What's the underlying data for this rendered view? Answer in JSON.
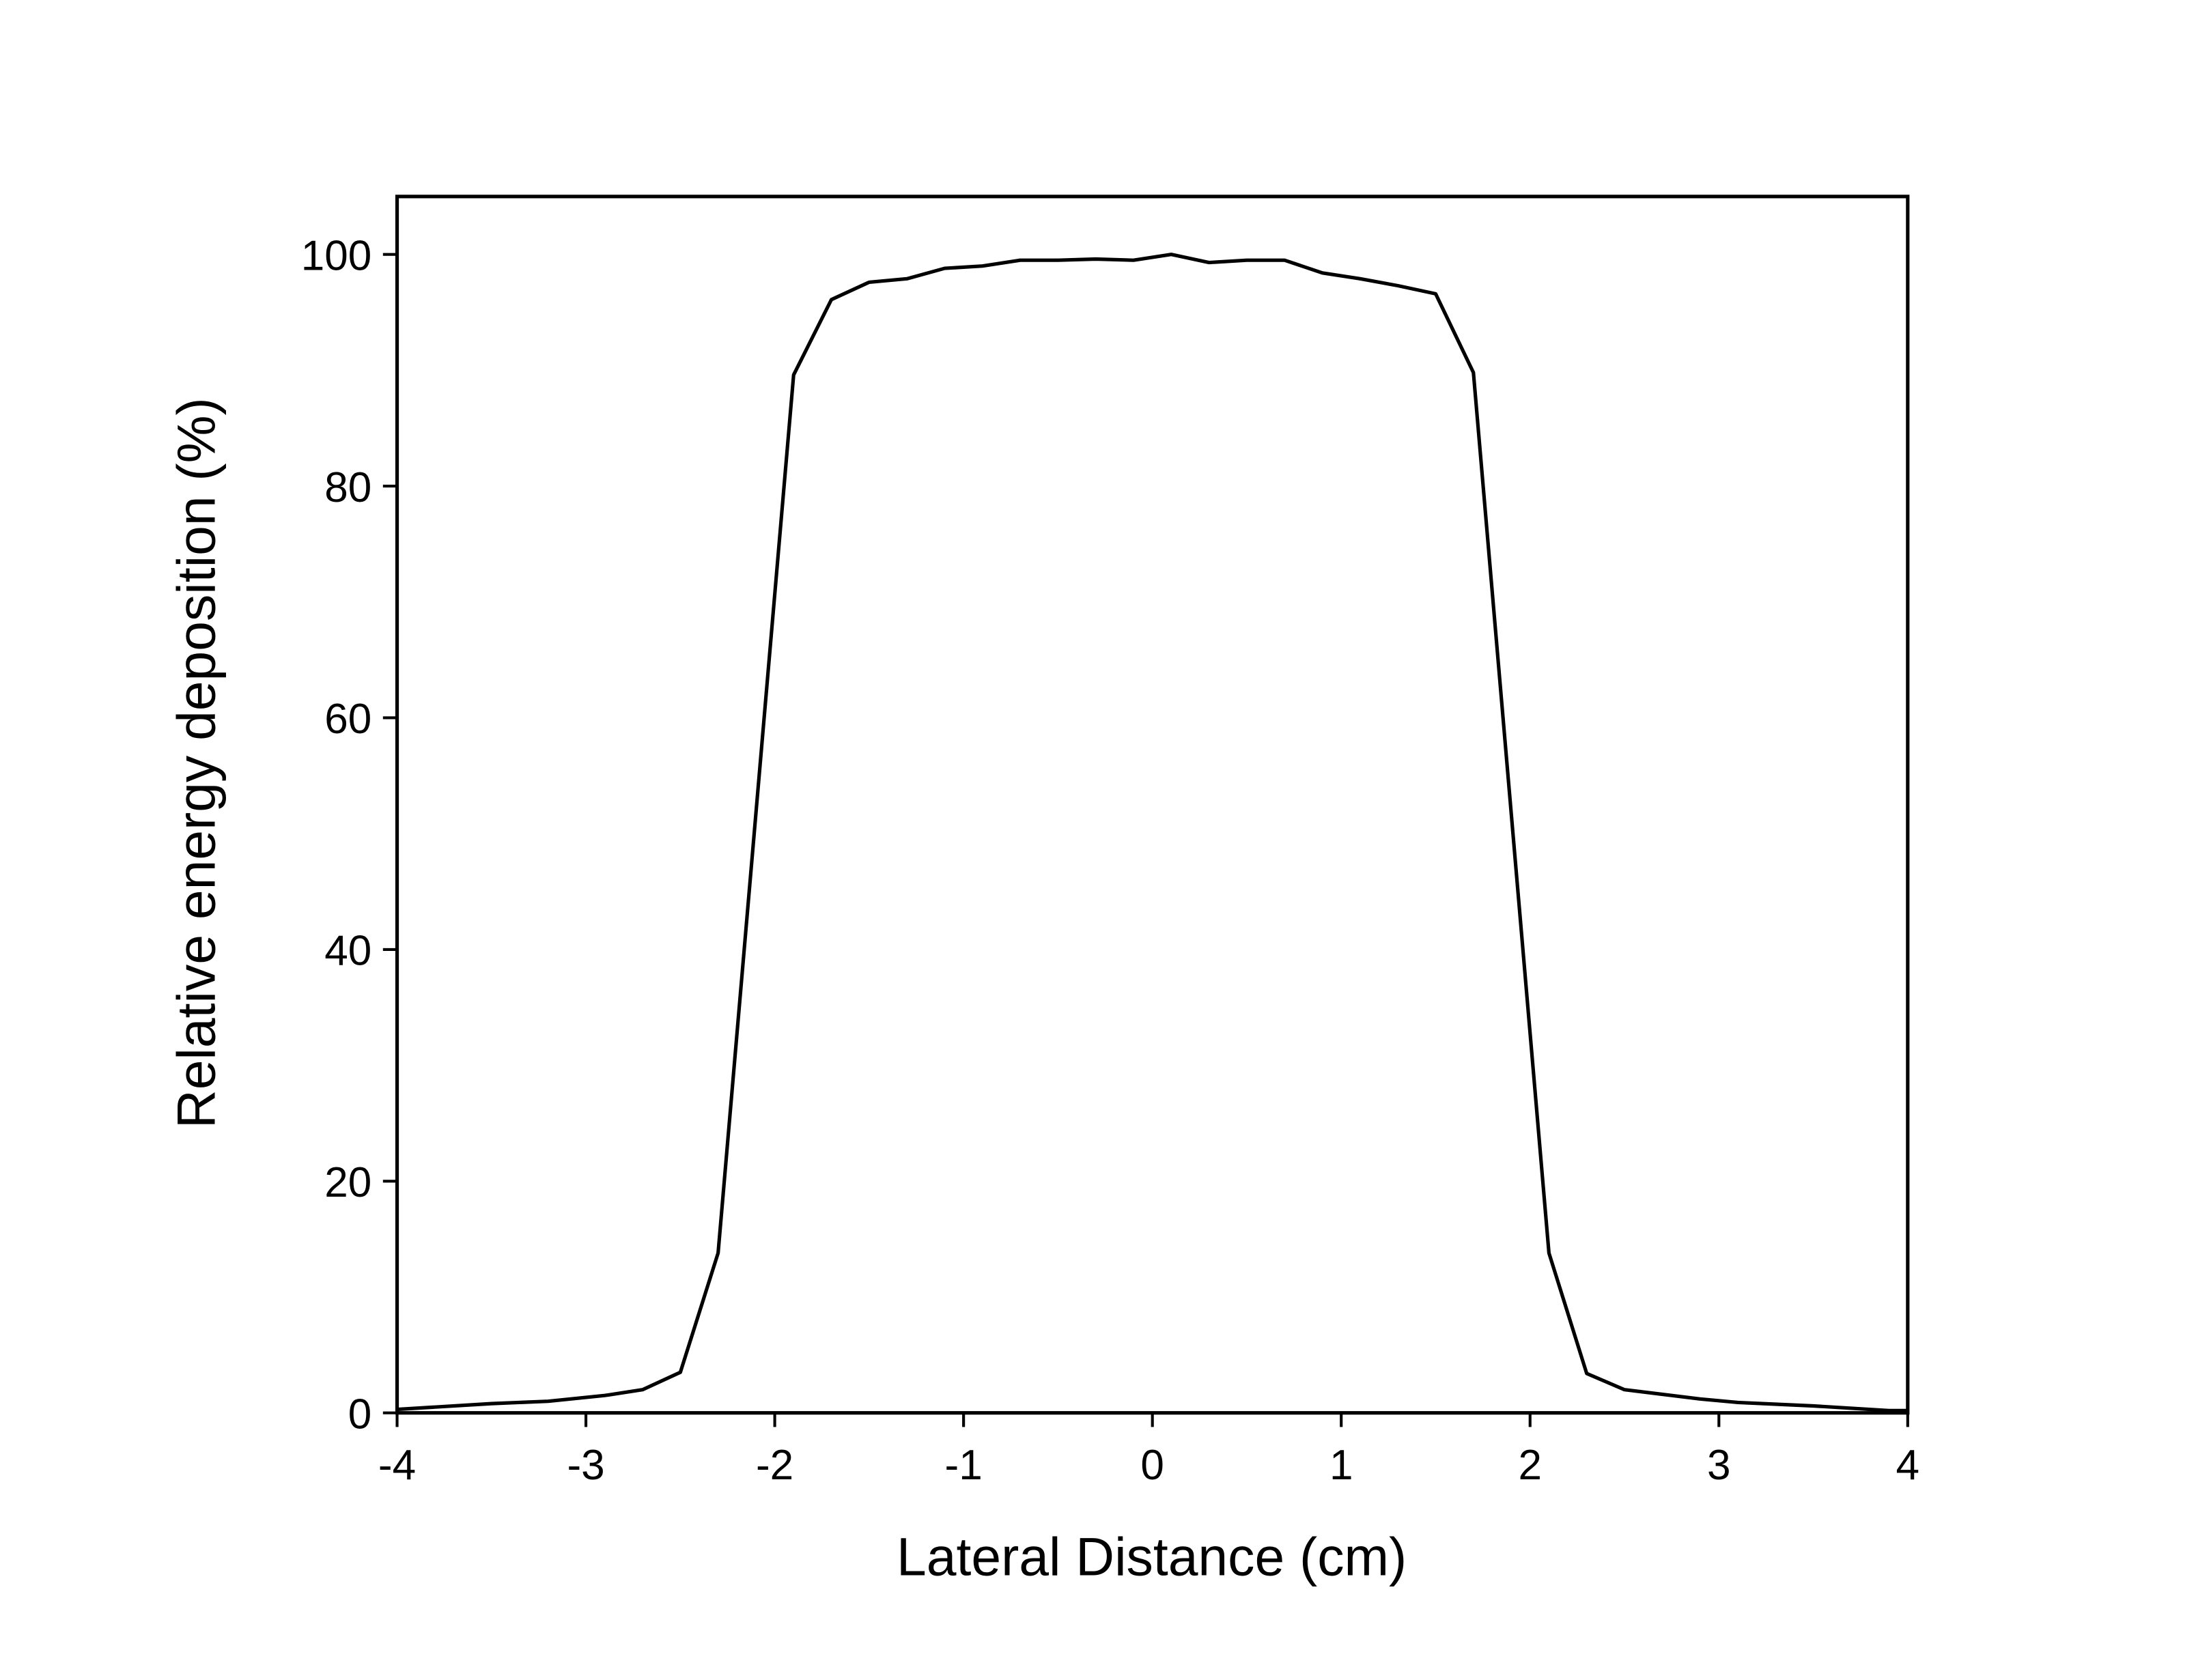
{
  "chart_data": {
    "type": "line",
    "xlabel": "Lateral Distance (cm)",
    "ylabel": "Relative energy deposition (%)",
    "x": [
      -4,
      -3.5,
      -3.2,
      -2.9,
      -2.7,
      -2.5,
      -2.3,
      -1.9,
      -1.7,
      -1.5,
      -1.3,
      -1.1,
      -0.9,
      -0.7,
      -0.5,
      -0.3,
      -0.1,
      0.1,
      0.3,
      0.5,
      0.7,
      0.9,
      1.1,
      1.3,
      1.5,
      1.7,
      2.1,
      2.3,
      2.5,
      2.9,
      3.1,
      3.5,
      3.9,
      4
    ],
    "series": [
      {
        "color": "#000000",
        "values": [
          0.3,
          0.8,
          1.0,
          1.5,
          2.0,
          3.5,
          13.8,
          89.6,
          96.1,
          97.6,
          97.9,
          98.8,
          99.0,
          99.5,
          99.5,
          99.6,
          99.5,
          100,
          99.3,
          99.5,
          99.5,
          98.4,
          97.9,
          97.3,
          96.6,
          89.8,
          13.8,
          3.4,
          2.0,
          1.2,
          0.9,
          0.6,
          0.2,
          0.2
        ]
      }
    ],
    "xlim": [
      -4,
      4
    ],
    "ylim": [
      0,
      105
    ],
    "xticks": [
      -4,
      -3,
      -2,
      -1,
      0,
      1,
      2,
      3,
      4
    ],
    "yticks": [
      0,
      20,
      40,
      60,
      80,
      100
    ]
  }
}
